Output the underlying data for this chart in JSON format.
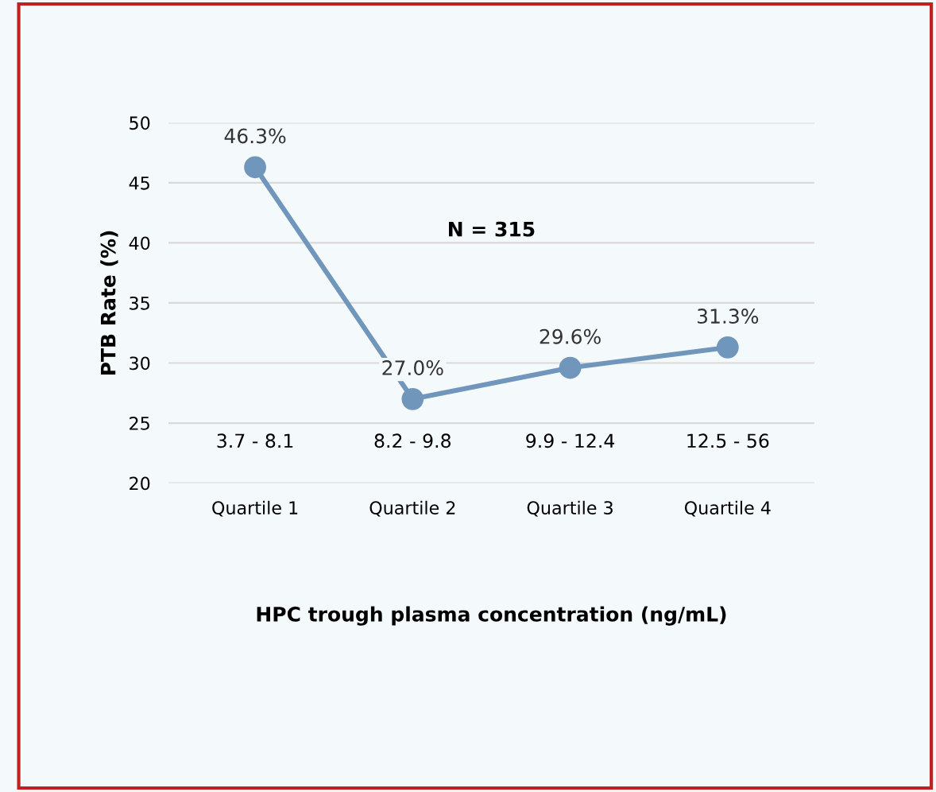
{
  "chart_data": {
    "type": "line",
    "xlabel": "HPC trough plasma concentration (ng/mL)",
    "ylabel": "PTB Rate (%)",
    "categories": [
      "Quartile 1",
      "Quartile 2",
      "Quartile 3",
      "Quartile 4"
    ],
    "series": [
      {
        "color": "#7096bb",
        "values": [
          46.3,
          27.0,
          29.6,
          31.3
        ],
        "value_labels": [
          "46.3%",
          "27.0%",
          "29.6%",
          "31.3%"
        ]
      }
    ],
    "ylim": [
      20,
      50
    ],
    "yticks": [
      20,
      25,
      30,
      35,
      40,
      45,
      50
    ],
    "grid": "y",
    "marker": "circle",
    "line_style": "solid",
    "annotations": [
      "N = 315",
      "3.7 - 8.1",
      "8.2 - 9.8",
      "9.9 - 12.4",
      "12.5 - 56"
    ]
  }
}
